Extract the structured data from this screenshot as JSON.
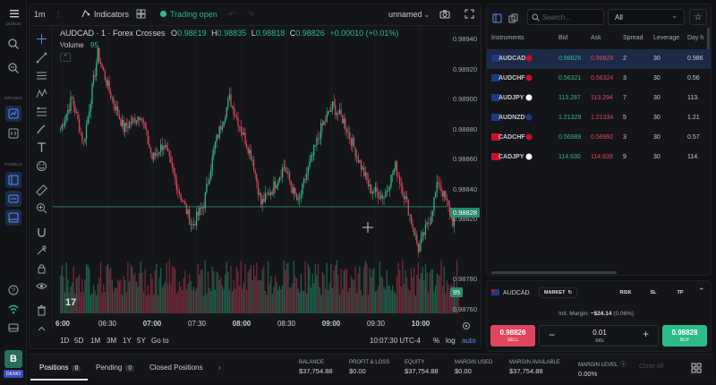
{
  "sidebar": {
    "spaces_label": "SPACES",
    "panels_label": "PANELS",
    "avatar_letter": "B",
    "demo_label": "DEMO",
    "logo_text": "QUEUE"
  },
  "chart_toolbar": {
    "interval": "1m",
    "indicators_label": "Indicators",
    "status_label": "Trading open",
    "layout_name": "unnamed"
  },
  "legend": {
    "symbol": "AUDCAD · 1 · Forex Crosses",
    "o_label": "O",
    "o_value": "0.98819",
    "h_label": "H",
    "h_value": "0.98835",
    "l_label": "L",
    "l_value": "0.98818",
    "c_label": "C",
    "c_value": "0.98826",
    "change": "+0.00010 (+0.01%)",
    "volume_label": "Volume",
    "volume_value": "95"
  },
  "chart_data": {
    "type": "candlestick",
    "x_ticks": [
      "6:00",
      "06:30",
      "07:00",
      "07:30",
      "08:00",
      "08:30",
      "09:00",
      "09:30",
      "10:00"
    ],
    "y_ticks": [
      "0.98940",
      "0.98920",
      "0.98900",
      "0.98880",
      "0.98860",
      "0.98840",
      "0.98820",
      "0.98780",
      "0.98760"
    ],
    "y_range": [
      0.9876,
      0.9894
    ],
    "last_price": "0.98828",
    "last_volume": "95"
  },
  "chart_bottom": {
    "ranges": [
      "1D",
      "5D",
      "1M",
      "3M",
      "1Y",
      "5Y"
    ],
    "goto_label": "Go to",
    "time": "10:07:30 UTC-4",
    "percent": "%",
    "log": "log",
    "auto": "auto"
  },
  "instruments": {
    "search_placeholder": "Search...",
    "filter_value": "All",
    "columns": [
      "Instruments",
      "Bid",
      "Ask",
      "Spread",
      "Leverage",
      "Day h"
    ],
    "rows": [
      {
        "name": "AUDCAD",
        "bid": "0.98826",
        "ask": "0.98828",
        "spread": "2",
        "leverage": "30",
        "day": "0.986"
      },
      {
        "name": "AUDCHF",
        "bid": "0.56321",
        "ask": "0.56324",
        "spread": "3",
        "leverage": "30",
        "day": "0.56"
      },
      {
        "name": "AUDJPY",
        "bid": "113.287",
        "ask": "113.294",
        "spread": "7",
        "leverage": "30",
        "day": "113."
      },
      {
        "name": "AUDNZD",
        "bid": "1.21329",
        "ask": "1.21334",
        "spread": "5",
        "leverage": "30",
        "day": "1.21"
      },
      {
        "name": "CADCHF",
        "bid": "0.56989",
        "ask": "0.56992",
        "spread": "3",
        "leverage": "30",
        "day": "0.57"
      },
      {
        "name": "CADJPY",
        "bid": "114.630",
        "ask": "114.639",
        "spread": "9",
        "leverage": "30",
        "day": "114."
      }
    ]
  },
  "order": {
    "symbol": "AUDCAD",
    "type_label": "MARKET",
    "risk_label": "RISK",
    "sl_label": "SL",
    "tp_label": "TP",
    "margin_label": "Init. Margin:",
    "margin_value": "~$24.14",
    "margin_pct": "(0.06%)",
    "sell_price": "0.98826",
    "sell_label": "SELL",
    "buy_price": "0.98828",
    "buy_label": "BUY",
    "lots_value": "0.01",
    "lots_label": "lots"
  },
  "bottom_bar": {
    "positions_label": "Positions",
    "positions_count": "0",
    "pending_label": "Pending",
    "pending_count": "0",
    "closed_label": "Closed Positions",
    "balance_label": "BALANCE",
    "balance_value": "$37,754.88",
    "pl_label": "PROFIT & LOSS",
    "pl_value": "$0.00",
    "equity_label": "EQUITY",
    "equity_value": "$37,754.88",
    "margin_used_label": "MARGIN USED",
    "margin_used_value": "$0.00",
    "margin_avail_label": "MARGIN AVAILABLE",
    "margin_avail_value": "$37,754.88",
    "margin_level_label": "MARGIN LEVEL",
    "margin_level_value": "0.00%",
    "close_all_label": "Close All"
  },
  "colors": {
    "up": "#2dbb8a",
    "down": "#e0455f",
    "accent": "#5b8def"
  }
}
